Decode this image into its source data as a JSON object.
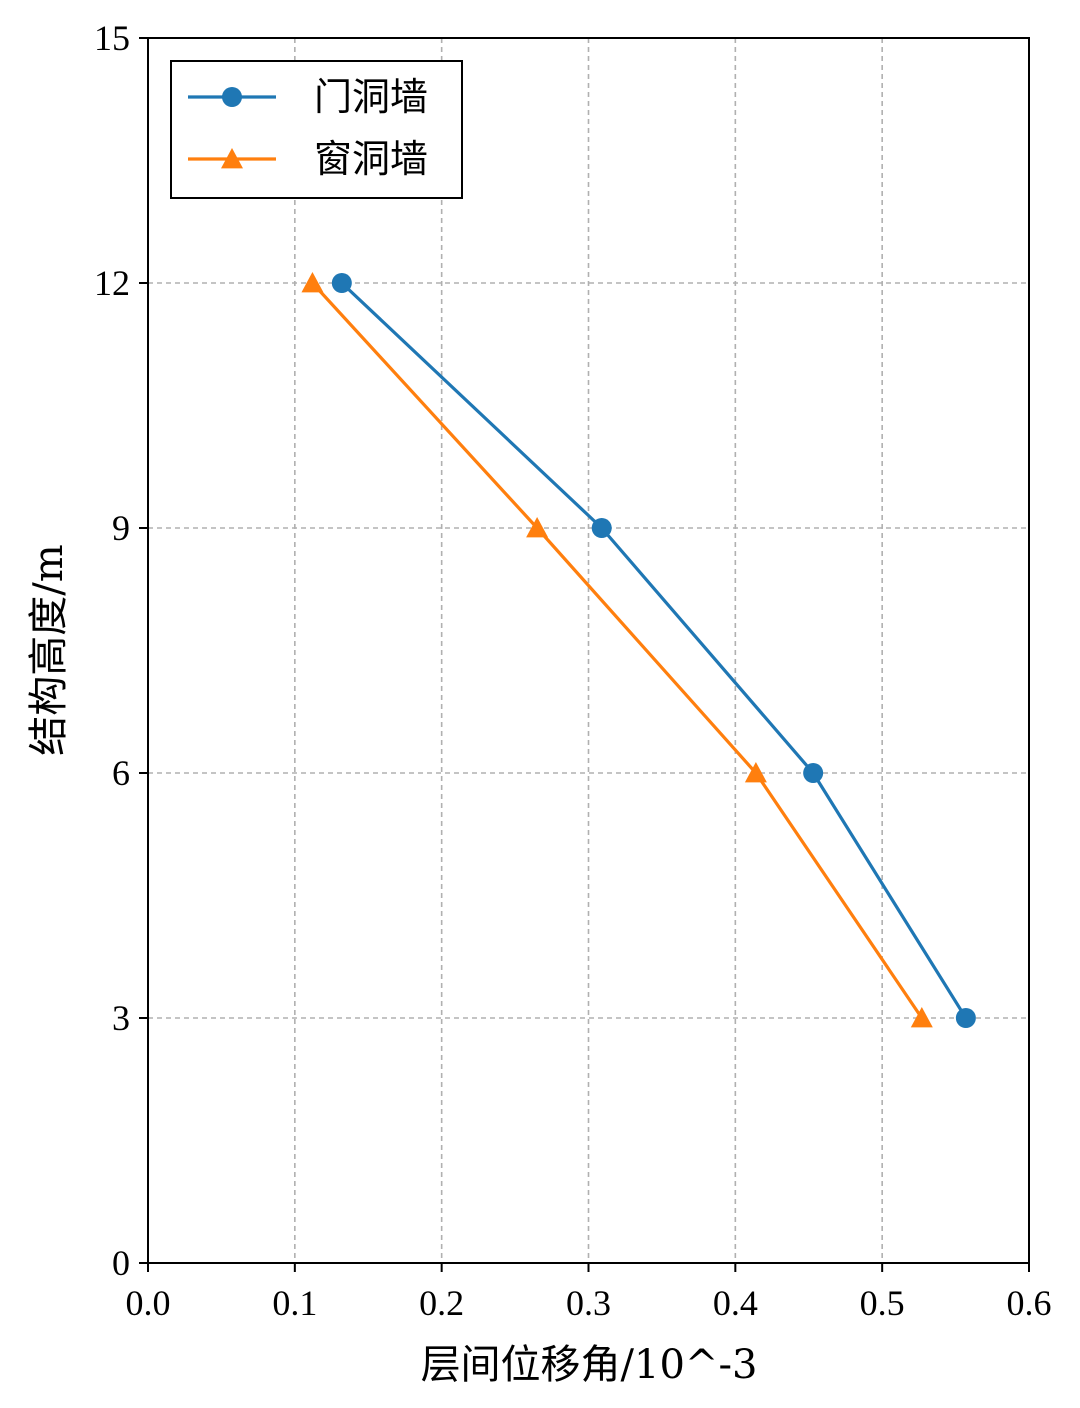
{
  "chart_data": {
    "type": "line",
    "title": "",
    "xlabel": "层间位移角/10^-3",
    "ylabel": "结构高度/m",
    "xlim": [
      0.0,
      0.6
    ],
    "ylim": [
      0,
      15
    ],
    "xticks": [
      0.0,
      0.1,
      0.2,
      0.3,
      0.4,
      0.5,
      0.6
    ],
    "xtick_labels": [
      "0.0",
      "0.1",
      "0.2",
      "0.3",
      "0.4",
      "0.5",
      "0.6"
    ],
    "yticks": [
      0,
      3,
      6,
      9,
      12,
      15
    ],
    "ytick_labels": [
      "0",
      "3",
      "6",
      "9",
      "12",
      "15"
    ],
    "grid": true,
    "legend_position": "top-left",
    "series": [
      {
        "name": "门洞墙",
        "color": "#1f77b4",
        "marker": "circle",
        "x": [
          0.557,
          0.453,
          0.309,
          0.132
        ],
        "y": [
          3,
          6,
          9,
          12
        ]
      },
      {
        "name": "窗洞墙",
        "color": "#ff7f0e",
        "marker": "triangle",
        "x": [
          0.527,
          0.414,
          0.265,
          0.112
        ],
        "y": [
          3,
          6,
          9,
          12
        ]
      }
    ]
  }
}
